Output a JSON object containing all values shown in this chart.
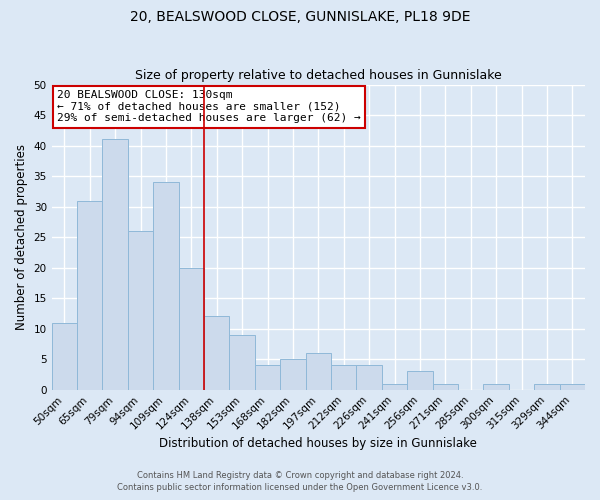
{
  "title": "20, BEALSWOOD CLOSE, GUNNISLAKE, PL18 9DE",
  "subtitle": "Size of property relative to detached houses in Gunnislake",
  "xlabel": "Distribution of detached houses by size in Gunnislake",
  "ylabel": "Number of detached properties",
  "bin_labels": [
    "50sqm",
    "65sqm",
    "79sqm",
    "94sqm",
    "109sqm",
    "124sqm",
    "138sqm",
    "153sqm",
    "168sqm",
    "182sqm",
    "197sqm",
    "212sqm",
    "226sqm",
    "241sqm",
    "256sqm",
    "271sqm",
    "285sqm",
    "300sqm",
    "315sqm",
    "329sqm",
    "344sqm"
  ],
  "bar_values": [
    11,
    31,
    41,
    26,
    34,
    20,
    12,
    9,
    4,
    5,
    6,
    4,
    4,
    1,
    3,
    1,
    0,
    1,
    0,
    1,
    1
  ],
  "bar_color": "#ccdaec",
  "bar_edge_color": "#8fb8d8",
  "vline_x": 5.5,
  "vline_color": "#cc0000",
  "annotation_title": "20 BEALSWOOD CLOSE: 130sqm",
  "annotation_line1": "← 71% of detached houses are smaller (152)",
  "annotation_line2": "29% of semi-detached houses are larger (62) →",
  "annotation_box_color": "#ffffff",
  "annotation_box_edge_color": "#cc0000",
  "ylim": [
    0,
    50
  ],
  "yticks": [
    0,
    5,
    10,
    15,
    20,
    25,
    30,
    35,
    40,
    45,
    50
  ],
  "footer1": "Contains HM Land Registry data © Crown copyright and database right 2024.",
  "footer2": "Contains public sector information licensed under the Open Government Licence v3.0.",
  "bg_color": "#dce8f5",
  "plot_bg_color": "#dce8f5",
  "grid_color": "#ffffff"
}
